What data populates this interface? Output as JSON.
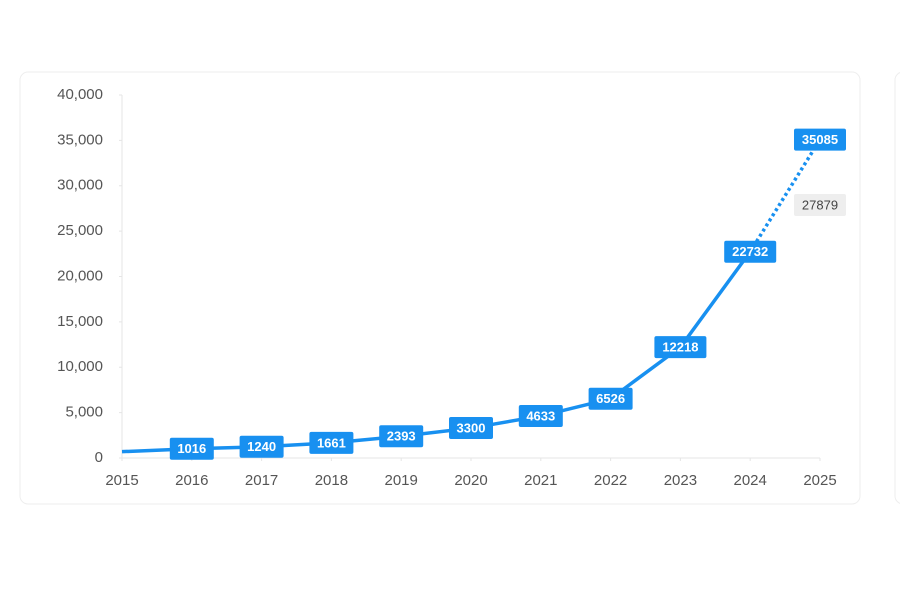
{
  "chart_data": {
    "type": "line",
    "x": [
      2015,
      2016,
      2017,
      2018,
      2019,
      2020,
      2021,
      2022,
      2023,
      2024,
      2025
    ],
    "series": [
      {
        "color": "#1890f0",
        "values": [
          700,
          1016,
          1240,
          1661,
          2393,
          3300,
          4633,
          6526,
          12218,
          22732,
          35085
        ],
        "labels": [
          false,
          true,
          true,
          true,
          true,
          true,
          true,
          true,
          true,
          true,
          true
        ],
        "dashed_from_x": 2024
      },
      {
        "color": "#eeeeee",
        "values": [
          null,
          null,
          null,
          null,
          null,
          null,
          null,
          null,
          null,
          null,
          27879
        ],
        "labels": [
          false,
          false,
          false,
          false,
          false,
          false,
          false,
          false,
          false,
          false,
          true
        ]
      }
    ],
    "xlim": [
      2015,
      2025
    ],
    "xticks": [
      2015,
      2016,
      2017,
      2018,
      2019,
      2020,
      2021,
      2022,
      2023,
      2024,
      2025
    ],
    "ylim": [
      0,
      40000
    ],
    "yticks": [
      0,
      {
        "value": 5000,
        "label": "5,000"
      },
      {
        "value": 10000,
        "label": "10,000"
      },
      {
        "value": 15000,
        "label": "15,000"
      },
      {
        "value": 20000,
        "label": "20,000"
      },
      {
        "value": 25000,
        "label": "25,000"
      },
      {
        "value": 30000,
        "label": "30,000"
      },
      {
        "value": 35000,
        "label": "35,000"
      },
      {
        "value": 40000,
        "label": "40,000"
      }
    ]
  }
}
